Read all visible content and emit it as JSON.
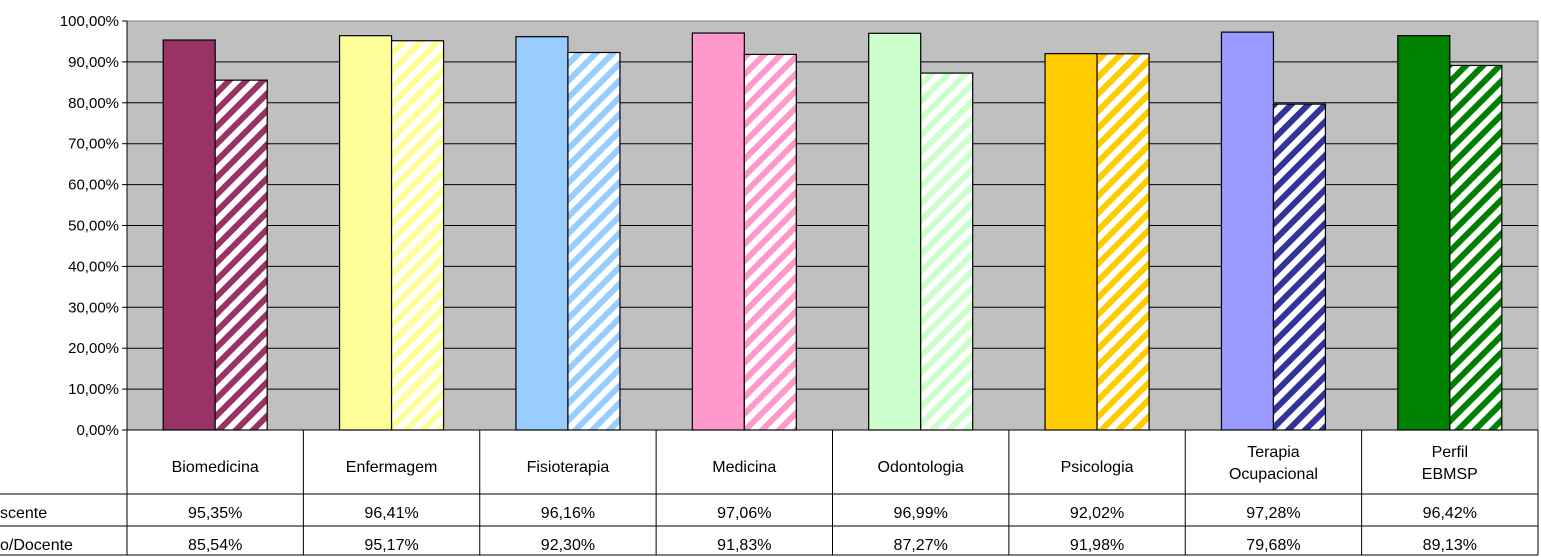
{
  "chart_data": {
    "type": "bar",
    "categories": [
      [
        "Biomedicina"
      ],
      [
        "Enfermagem"
      ],
      [
        "Fisioterapia"
      ],
      [
        "Medicina"
      ],
      [
        "Odontologia"
      ],
      [
        "Psicologia"
      ],
      [
        "Terapia",
        "Ocupacional"
      ],
      [
        "Perfil",
        "EBMSP"
      ]
    ],
    "series": [
      {
        "name": "scente",
        "values": [
          95.35,
          96.41,
          96.16,
          97.06,
          96.99,
          92.02,
          97.28,
          96.42
        ],
        "labels": [
          "95,35%",
          "96,41%",
          "96,16%",
          "97,06%",
          "96,99%",
          "92,02%",
          "97,28%",
          "96,42%"
        ],
        "pattern": "solid"
      },
      {
        "name": "o/Docente",
        "values": [
          85.54,
          95.17,
          92.3,
          91.83,
          87.27,
          91.98,
          79.68,
          89.13
        ],
        "labels": [
          "85,54%",
          "95,17%",
          "92,30%",
          "91,83%",
          "87,27%",
          "91,98%",
          "79,68%",
          "89,13%"
        ],
        "pattern": "diagonal-stripes"
      }
    ],
    "bar_colors": [
      "#993366",
      "#FFFF99",
      "#99CCFF",
      "#FF99CC",
      "#CCFFCC",
      "#FFCC00",
      "#9999FF",
      "#008000"
    ],
    "stripe_colors": [
      "#993366",
      "#FFFF99",
      "#99CCFF",
      "#FF99CC",
      "#CCFFCC",
      "#FFCC00",
      "#333399",
      "#008000"
    ],
    "ylim": [
      0,
      100
    ],
    "yticks": [
      "0,00%",
      "10,00%",
      "20,00%",
      "30,00%",
      "40,00%",
      "50,00%",
      "60,00%",
      "70,00%",
      "80,00%",
      "90,00%",
      "100,00%"
    ],
    "plot_background": "#C0C0C0",
    "grid": true,
    "data_table": true
  }
}
